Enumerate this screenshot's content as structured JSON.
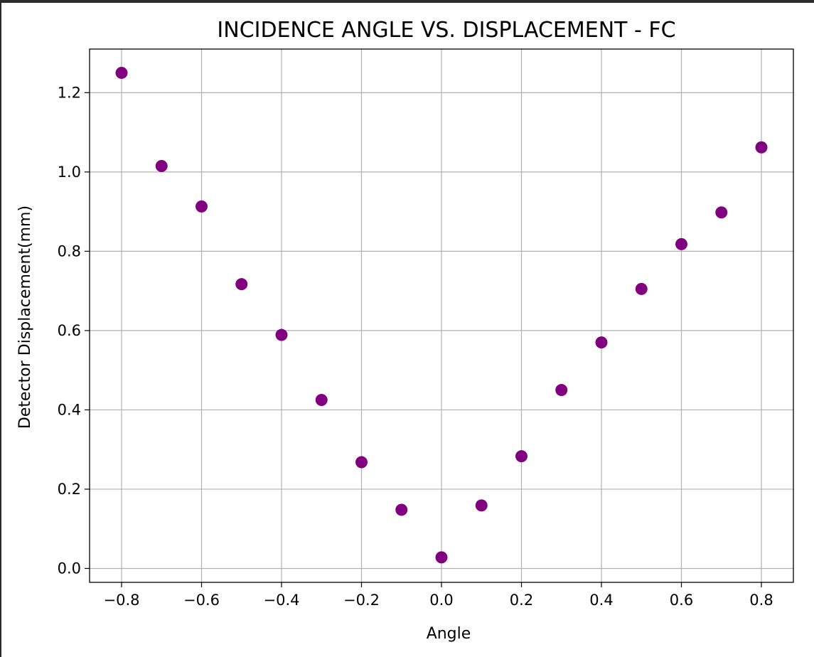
{
  "chart_data": {
    "type": "scatter",
    "title": "INCIDENCE ANGLE VS. DISPLACEMENT - FC",
    "xlabel": "Angle",
    "ylabel": "Detector Displacement(mm)",
    "xlim": [
      -0.88,
      0.88
    ],
    "ylim": [
      -0.035,
      1.31
    ],
    "xticks": [
      -0.8,
      -0.6,
      -0.4,
      -0.2,
      0.0,
      0.2,
      0.4,
      0.6,
      0.8
    ],
    "xtick_labels": [
      "−0.8",
      "−0.6",
      "−0.4",
      "−0.2",
      "0.0",
      "0.2",
      "0.4",
      "0.6",
      "0.8"
    ],
    "yticks": [
      0.0,
      0.2,
      0.4,
      0.6,
      0.8,
      1.0,
      1.2
    ],
    "ytick_labels": [
      "0.0",
      "0.2",
      "0.4",
      "0.6",
      "0.8",
      "1.0",
      "1.2"
    ],
    "grid": true,
    "marker_color": "#800080",
    "x": [
      -0.8,
      -0.7,
      -0.6,
      -0.5,
      -0.4,
      -0.3,
      -0.2,
      -0.1,
      0.0,
      0.1,
      0.2,
      0.3,
      0.4,
      0.5,
      0.6,
      0.7,
      0.8
    ],
    "y": [
      1.25,
      1.015,
      0.913,
      0.717,
      0.589,
      0.425,
      0.268,
      0.148,
      0.028,
      0.159,
      0.283,
      0.45,
      0.57,
      0.705,
      0.818,
      0.898,
      1.062
    ]
  }
}
